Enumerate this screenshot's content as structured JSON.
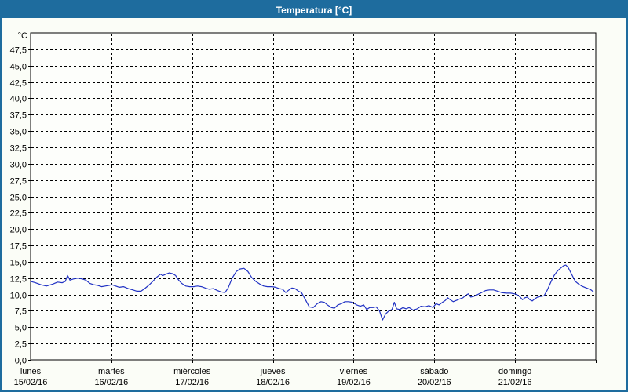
{
  "window": {
    "title": "Temperatura [°C]"
  },
  "colors": {
    "titlebar": "#1e6c9e",
    "window_border": "#1e6c9e",
    "panel_bg": "#fbfdf7",
    "plot_bg": "#fdfefb",
    "grid": "#000000",
    "text": "#000000",
    "series_line": "#2233c4"
  },
  "chart_data": {
    "type": "line",
    "title": "Temperatura [°C]",
    "y_unit_label": "°C",
    "ylim": [
      0,
      50
    ],
    "ytick_step": 2.5,
    "ytick_labels_top_to_bottom": [
      "47,5",
      "45,0",
      "42,5",
      "40,0",
      "37,5",
      "35,0",
      "32,5",
      "30,0",
      "27,5",
      "25,0",
      "22,5",
      "20,0",
      "17,5",
      "15,0",
      "12,5",
      "10,0",
      "7,5",
      "5,0",
      "2,5",
      "0,0"
    ],
    "x_range_hours": [
      0,
      168
    ],
    "x_days": [
      {
        "name": "lunes",
        "date": "15/02/16"
      },
      {
        "name": "martes",
        "date": "16/02/16"
      },
      {
        "name": "miércoles",
        "date": "17/02/16"
      },
      {
        "name": "jueves",
        "date": "18/02/16"
      },
      {
        "name": "viernes",
        "date": "19/02/16"
      },
      {
        "name": "sábado",
        "date": "20/02/16"
      },
      {
        "name": "domingo",
        "date": "21/02/16"
      }
    ],
    "grid": "dashed",
    "legend": "none",
    "series": [
      {
        "name": "Temperatura",
        "color": "#2233c4",
        "points": [
          [
            0,
            12.0
          ],
          [
            1.4,
            11.8
          ],
          [
            3,
            11.5
          ],
          [
            4.7,
            11.3
          ],
          [
            6.6,
            11.6
          ],
          [
            8,
            11.9
          ],
          [
            9.4,
            11.8
          ],
          [
            10.3,
            12.0
          ],
          [
            11,
            12.9
          ],
          [
            11.7,
            12.2
          ],
          [
            12.9,
            12.4
          ],
          [
            14,
            12.5
          ],
          [
            15.2,
            12.4
          ],
          [
            16.4,
            12.2
          ],
          [
            17.6,
            11.7
          ],
          [
            18.7,
            11.5
          ],
          [
            19.9,
            11.4
          ],
          [
            21.1,
            11.2
          ],
          [
            22.2,
            11.3
          ],
          [
            23.4,
            11.4
          ],
          [
            24.1,
            11.5
          ],
          [
            25.3,
            11.3
          ],
          [
            26.4,
            11.1
          ],
          [
            27.6,
            11.2
          ],
          [
            29,
            10.9
          ],
          [
            30.4,
            10.7
          ],
          [
            31.6,
            10.5
          ],
          [
            32.8,
            10.5
          ],
          [
            33.9,
            10.9
          ],
          [
            35.1,
            11.4
          ],
          [
            36.3,
            12.0
          ],
          [
            37.4,
            12.6
          ],
          [
            38.6,
            13.1
          ],
          [
            39.3,
            12.9
          ],
          [
            40.2,
            13.1
          ],
          [
            41.2,
            13.3
          ],
          [
            42.1,
            13.2
          ],
          [
            43.1,
            12.9
          ],
          [
            44,
            12.2
          ],
          [
            44.9,
            11.7
          ],
          [
            46.1,
            11.3
          ],
          [
            47.3,
            11.2
          ],
          [
            48.4,
            11.2
          ],
          [
            49.6,
            11.3
          ],
          [
            50.8,
            11.2
          ],
          [
            51.9,
            11.0
          ],
          [
            53.1,
            10.8
          ],
          [
            54.3,
            10.9
          ],
          [
            55.5,
            10.6
          ],
          [
            56.6,
            10.4
          ],
          [
            57.8,
            10.3
          ],
          [
            58.7,
            11.0
          ],
          [
            59.9,
            12.5
          ],
          [
            61.1,
            13.5
          ],
          [
            62.2,
            13.9
          ],
          [
            63.4,
            14.0
          ],
          [
            64.6,
            13.5
          ],
          [
            65.7,
            12.6
          ],
          [
            66.9,
            12.0
          ],
          [
            68.1,
            11.6
          ],
          [
            69.3,
            11.3
          ],
          [
            70.4,
            11.2
          ],
          [
            71.8,
            11.2
          ],
          [
            72.8,
            11.1
          ],
          [
            73.9,
            10.9
          ],
          [
            74.9,
            10.8
          ],
          [
            75.8,
            10.3
          ],
          [
            76.8,
            10.7
          ],
          [
            77.7,
            11.0
          ],
          [
            78.6,
            10.9
          ],
          [
            79.6,
            10.5
          ],
          [
            80.5,
            10.3
          ],
          [
            81.7,
            9.2
          ],
          [
            82.8,
            8.1
          ],
          [
            84,
            8.0
          ],
          [
            85.2,
            8.6
          ],
          [
            86.3,
            8.9
          ],
          [
            87.3,
            8.8
          ],
          [
            88.2,
            8.4
          ],
          [
            89.4,
            8.0
          ],
          [
            90.3,
            7.9
          ],
          [
            91.3,
            8.4
          ],
          [
            92.4,
            8.6
          ],
          [
            93.4,
            8.9
          ],
          [
            94.5,
            8.9
          ],
          [
            95.7,
            8.8
          ],
          [
            96.9,
            8.4
          ],
          [
            98,
            8.2
          ],
          [
            99,
            8.4
          ],
          [
            99.9,
            7.7
          ],
          [
            100.8,
            8.0
          ],
          [
            101.8,
            8.0
          ],
          [
            102.7,
            8.1
          ],
          [
            103.7,
            7.5
          ],
          [
            104.6,
            6.1
          ],
          [
            105.5,
            7.0
          ],
          [
            106.5,
            7.5
          ],
          [
            107.4,
            7.7
          ],
          [
            108.1,
            8.8
          ],
          [
            108.8,
            7.8
          ],
          [
            109.7,
            7.7
          ],
          [
            110.7,
            8.0
          ],
          [
            111.6,
            7.8
          ],
          [
            112.5,
            8.0
          ],
          [
            113.7,
            7.6
          ],
          [
            114.9,
            7.8
          ],
          [
            116,
            8.2
          ],
          [
            117.2,
            8.1
          ],
          [
            118.4,
            8.3
          ],
          [
            119.6,
            8.0
          ],
          [
            120.5,
            8.6
          ],
          [
            121.4,
            8.4
          ],
          [
            122.4,
            8.8
          ],
          [
            123.3,
            9.1
          ],
          [
            124,
            9.5
          ],
          [
            124.7,
            9.2
          ],
          [
            125.6,
            8.9
          ],
          [
            126.6,
            9.1
          ],
          [
            127.5,
            9.3
          ],
          [
            128.5,
            9.5
          ],
          [
            129.4,
            9.9
          ],
          [
            130.1,
            10.1
          ],
          [
            130.8,
            9.6
          ],
          [
            131.7,
            9.7
          ],
          [
            132.9,
            10.0
          ],
          [
            134.1,
            10.3
          ],
          [
            135.2,
            10.6
          ],
          [
            136.4,
            10.7
          ],
          [
            137.6,
            10.7
          ],
          [
            138.8,
            10.5
          ],
          [
            139.9,
            10.3
          ],
          [
            141.3,
            10.2
          ],
          [
            142.7,
            10.2
          ],
          [
            143.9,
            10.1
          ],
          [
            144.8,
            9.9
          ],
          [
            145.5,
            9.6
          ],
          [
            146.2,
            9.2
          ],
          [
            146.9,
            9.5
          ],
          [
            147.6,
            9.6
          ],
          [
            148.4,
            9.2
          ],
          [
            149.1,
            9.0
          ],
          [
            149.8,
            9.3
          ],
          [
            150.7,
            9.6
          ],
          [
            151.6,
            9.7
          ],
          [
            152.6,
            9.8
          ],
          [
            153.5,
            10.6
          ],
          [
            154.2,
            11.4
          ],
          [
            154.9,
            12.2
          ],
          [
            155.6,
            12.9
          ],
          [
            156.3,
            13.4
          ],
          [
            157,
            13.8
          ],
          [
            157.7,
            14.1
          ],
          [
            158.4,
            14.4
          ],
          [
            159.1,
            14.5
          ],
          [
            159.8,
            14.1
          ],
          [
            160.5,
            13.4
          ],
          [
            161.2,
            12.7
          ],
          [
            161.9,
            12.0
          ],
          [
            162.9,
            11.6
          ],
          [
            163.8,
            11.3
          ],
          [
            164.7,
            11.1
          ],
          [
            165.7,
            10.9
          ],
          [
            166.6,
            10.7
          ],
          [
            167.3,
            10.4
          ]
        ]
      }
    ]
  }
}
